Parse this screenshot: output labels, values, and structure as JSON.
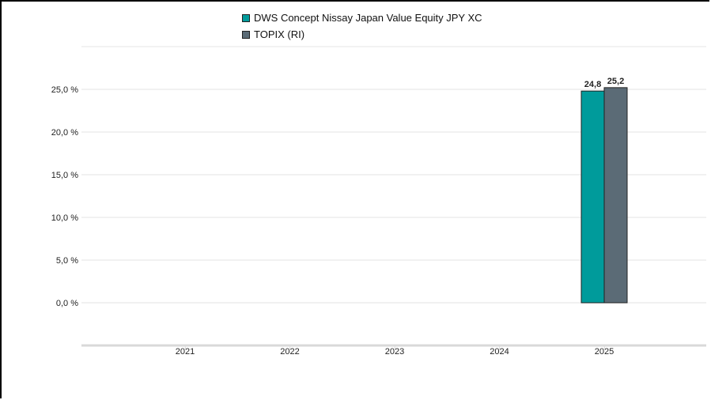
{
  "legend": {
    "items": [
      {
        "label": "DWS Concept Nissay Japan Value Equity JPY XC",
        "color": "#009B9B"
      },
      {
        "label": "TOPIX (RI)",
        "color": "#5B6B76"
      }
    ]
  },
  "chart_data": {
    "type": "bar",
    "title": "",
    "xlabel": "",
    "ylabel": "",
    "categories": [
      "2021",
      "2022",
      "2023",
      "2024",
      "2025"
    ],
    "series": [
      {
        "name": "DWS Concept Nissay Japan Value Equity JPY XC",
        "color": "#009B9B",
        "values": [
          null,
          null,
          null,
          null,
          24.8
        ]
      },
      {
        "name": "TOPIX (RI)",
        "color": "#5B6B76",
        "values": [
          null,
          null,
          null,
          null,
          25.2
        ]
      }
    ],
    "data_labels": [
      {
        "category": "2025",
        "series": 0,
        "text": "24,8"
      },
      {
        "category": "2025",
        "series": 1,
        "text": "25,2"
      }
    ],
    "yticks": [
      0,
      5,
      10,
      15,
      20,
      25
    ],
    "ytick_labels": [
      "0,0 %",
      "5,0 %",
      "10,0 %",
      "15,0 %",
      "20,0 %",
      "25,0 %"
    ],
    "ylim": [
      -5,
      30
    ],
    "grid": true,
    "legend_position": "top-center"
  }
}
